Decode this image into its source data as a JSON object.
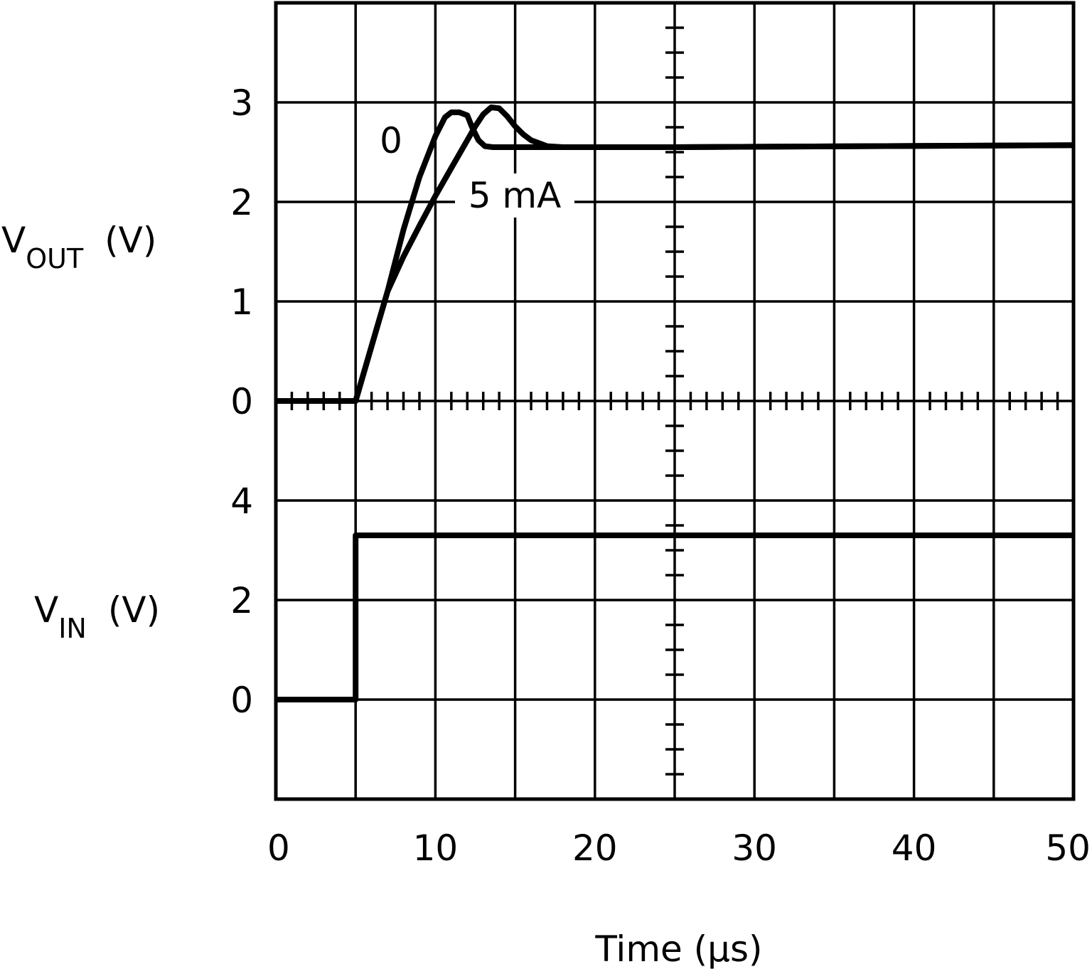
{
  "chart_data": {
    "type": "line",
    "xlabel": "Time (µs)",
    "x_ticks": [
      "0",
      "10",
      "20",
      "30",
      "40",
      "50"
    ],
    "xlim": [
      0,
      50
    ],
    "grid": true,
    "panels": [
      {
        "name": "vout",
        "ylabel_main": "V",
        "ylabel_sub": "OUT",
        "ylabel_unit": "(V)",
        "ylim": [
          0,
          4
        ],
        "y_ticks": [
          {
            "value": 0,
            "label": "0"
          },
          {
            "value": 1,
            "label": "1"
          },
          {
            "value": 2,
            "label": "2"
          },
          {
            "value": 3,
            "label": "3"
          }
        ],
        "series": [
          {
            "name": "0",
            "x": [
              0,
              5,
              6,
              7,
              8,
              9,
              10,
              10.6,
              11,
              11.5,
              12,
              12.3,
              12.7,
              13.1,
              13.6,
              14.5,
              17,
              25,
              50
            ],
            "y": [
              0,
              0,
              0.55,
              1.1,
              1.72,
              2.25,
              2.66,
              2.85,
              2.9,
              2.9,
              2.87,
              2.75,
              2.62,
              2.56,
              2.55,
              2.55,
              2.55,
              2.55,
              2.57
            ]
          },
          {
            "name": "5 mA",
            "x": [
              0,
              5,
              6,
              7,
              8,
              9,
              10,
              11,
              12,
              12.5,
              13,
              13.5,
              14,
              14.5,
              15,
              15.5,
              16,
              17,
              18,
              25,
              50
            ],
            "y": [
              0,
              0,
              0.55,
              1.1,
              1.45,
              1.76,
              2.06,
              2.34,
              2.62,
              2.76,
              2.88,
              2.95,
              2.94,
              2.86,
              2.76,
              2.68,
              2.62,
              2.56,
              2.55,
              2.55,
              2.57
            ]
          }
        ]
      },
      {
        "name": "vin",
        "ylabel_main": "V",
        "ylabel_sub": "IN",
        "ylabel_unit": "(V)",
        "ylim": [
          -2,
          6
        ],
        "y_ticks": [
          {
            "value": 0,
            "label": "0"
          },
          {
            "value": 2,
            "label": "2"
          },
          {
            "value": 4,
            "label": "4"
          }
        ],
        "series": [
          {
            "name": "",
            "x": [
              0,
              5,
              5,
              50
            ],
            "y": [
              0,
              0,
              3.3,
              3.3
            ]
          }
        ]
      }
    ],
    "annotations": [
      {
        "text": "0",
        "series": "0"
      },
      {
        "text": "5 mA",
        "series": "5 mA"
      }
    ]
  }
}
